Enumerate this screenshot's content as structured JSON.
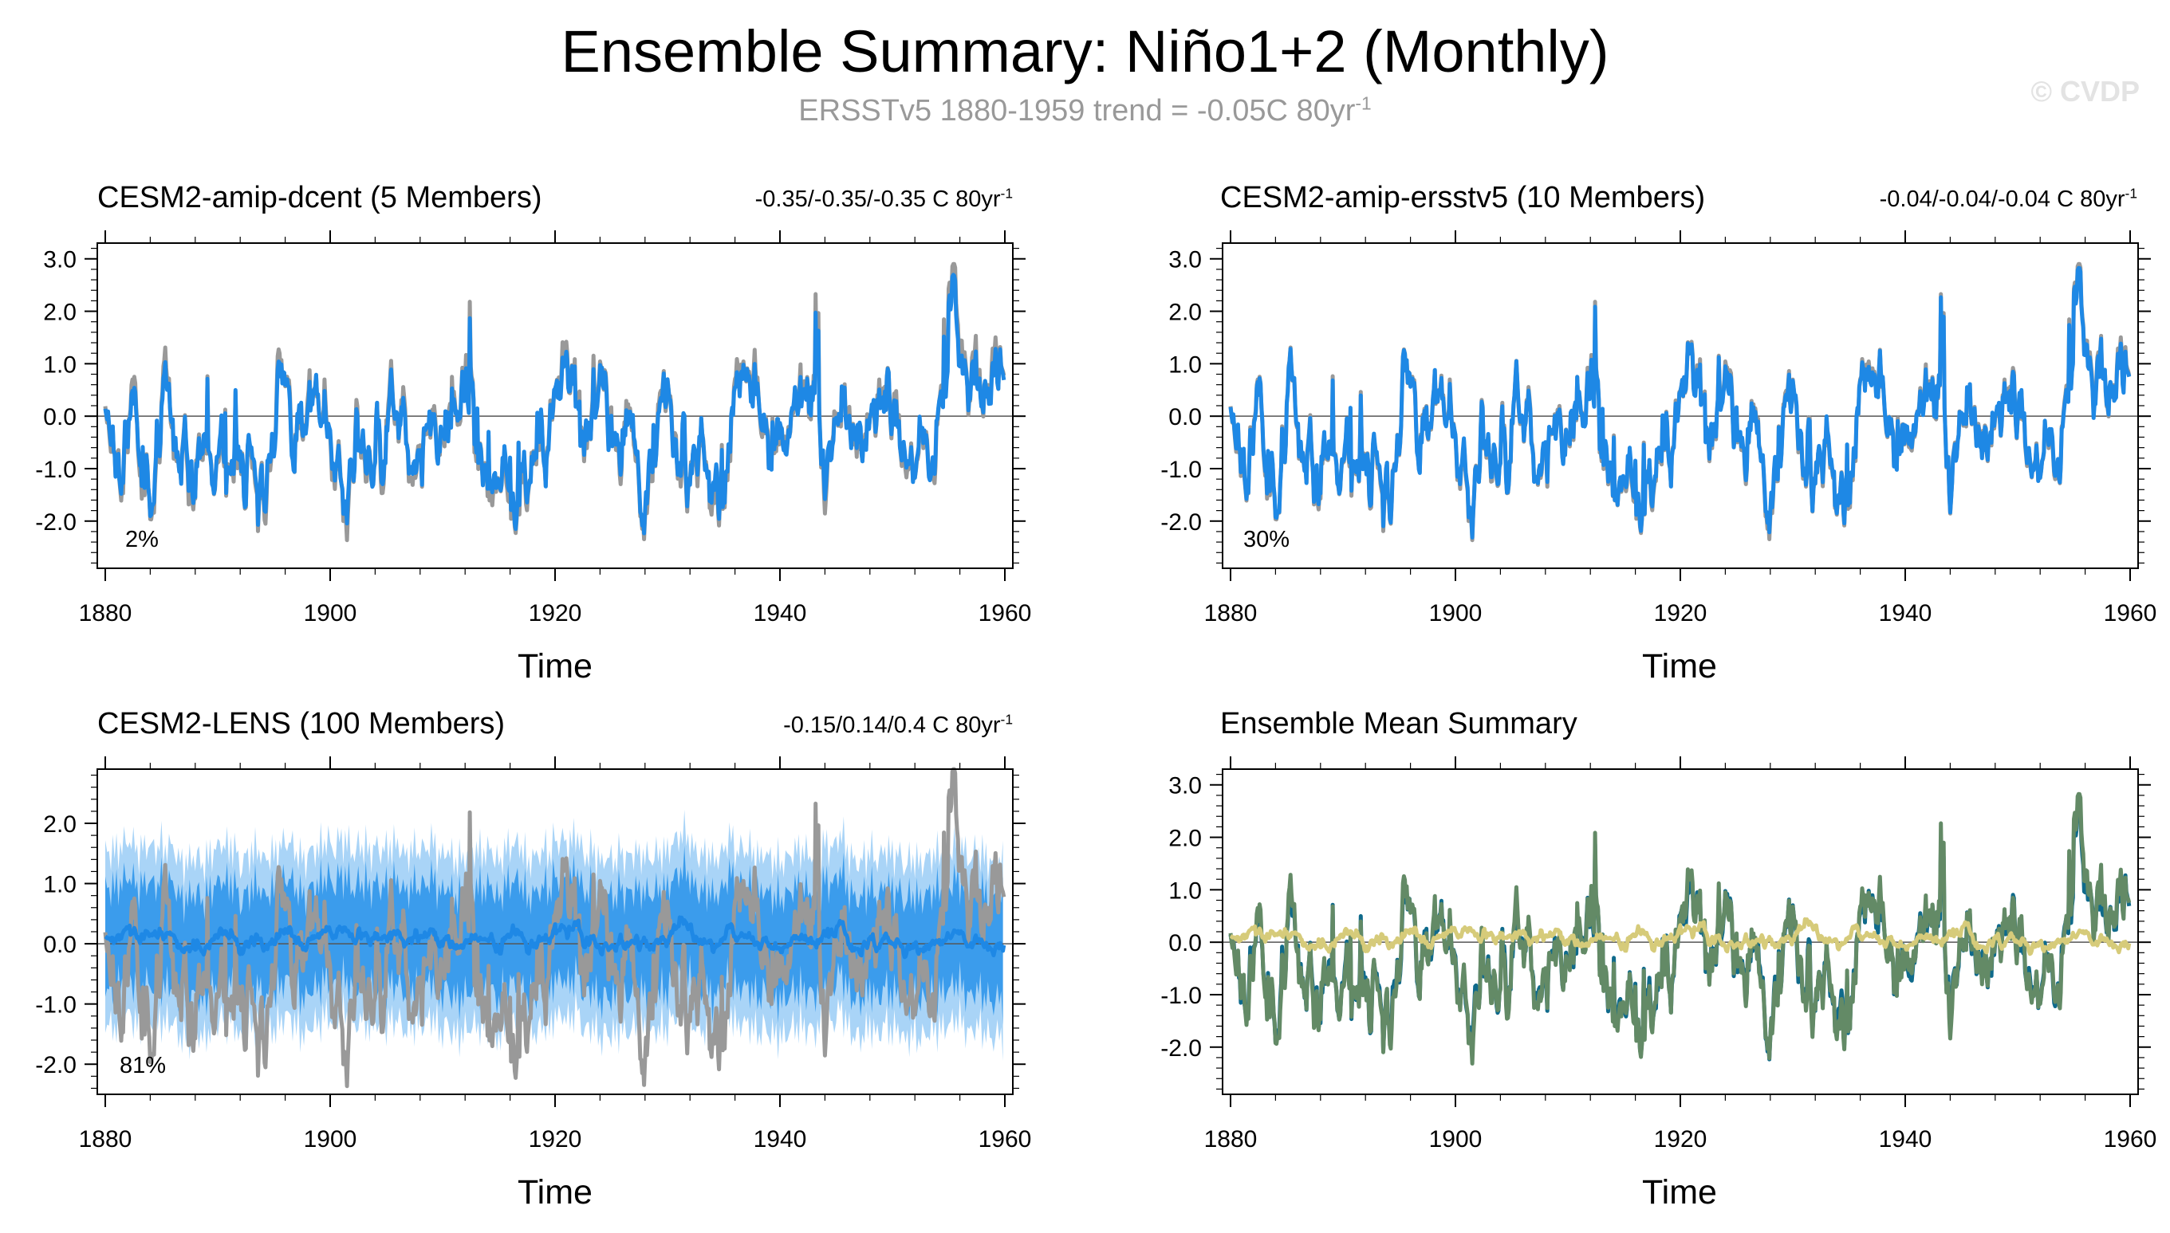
{
  "header": {
    "title": "Ensemble Summary: Niño1+2 (Monthly)",
    "subtitle": "ERSSTv5 1880-1959 trend = -0.05C 80yr",
    "subtitle_sup": "-1",
    "copyright": "© CVDP"
  },
  "colors": {
    "observed": "#999999",
    "member": "#1e88e5",
    "spread_outer": "#a9d4f7",
    "spread_inner": "#3b9cec",
    "dcent": "#0f6a8b",
    "ersstv5": "#638a66",
    "lens": "#d6cb7a"
  },
  "chart_data": [
    {
      "id": "dcent",
      "type": "line",
      "title": "CESM2-amip-dcent (5 Members)",
      "title_color": "#0f6a8b",
      "trend": "-0.35/-0.35/-0.35 C 80yr",
      "trend_sup": "-1",
      "percent": "2%",
      "xlabel": "Time",
      "xlim": [
        1880,
        1960
      ],
      "ylim": [
        -2.9,
        3.3
      ],
      "xticks": [
        "1880",
        "1900",
        "1920",
        "1940",
        "1960"
      ],
      "yticks": [
        "-2.0",
        "-1.0",
        "0.0",
        "1.0",
        "2.0",
        "3.0"
      ],
      "series": [
        {
          "role": "observed",
          "seed": 11,
          "mode": "obs"
        },
        {
          "role": "member",
          "seed": 11,
          "mode": "memberA"
        }
      ]
    },
    {
      "id": "ersstv5",
      "type": "line",
      "title": "CESM2-amip-ersstv5 (10 Members)",
      "title_color": "#638a66",
      "trend": "-0.04/-0.04/-0.04 C 80yr",
      "trend_sup": "-1",
      "percent": "30%",
      "xlabel": "Time",
      "xlim": [
        1880,
        1960
      ],
      "ylim": [
        -2.9,
        3.3
      ],
      "xticks": [
        "1880",
        "1900",
        "1920",
        "1940",
        "1960"
      ],
      "yticks": [
        "-2.0",
        "-1.0",
        "0.0",
        "1.0",
        "2.0",
        "3.0"
      ],
      "series": [
        {
          "role": "observed",
          "seed": 11,
          "mode": "obs"
        },
        {
          "role": "member",
          "seed": 11,
          "mode": "memberB"
        }
      ]
    },
    {
      "id": "lens",
      "type": "area",
      "title": "CESM2-LENS (100 Members)",
      "title_color": "#d6cb7a",
      "trend": "-0.15/0.14/0.4 C 80yr",
      "trend_sup": "-1",
      "percent": "81%",
      "xlabel": "Time",
      "xlim": [
        1880,
        1960
      ],
      "ylim": [
        -2.5,
        2.9
      ],
      "xticks": [
        "1880",
        "1900",
        "1920",
        "1940",
        "1960"
      ],
      "yticks": [
        "-2.0",
        "-1.0",
        "0.0",
        "1.0",
        "2.0"
      ],
      "bands": {
        "outer": 1.45,
        "inner": 0.85
      },
      "series": [
        {
          "role": "observed",
          "seed": 11,
          "mode": "obs"
        },
        {
          "role": "ensmean",
          "seed": 29,
          "mode": "mean"
        }
      ]
    },
    {
      "id": "summary",
      "type": "line",
      "title": "Ensemble Mean Summary",
      "title_color": "#000000",
      "trend": "",
      "percent": "",
      "xlabel": "Time",
      "xlim": [
        1880,
        1960
      ],
      "ylim": [
        -2.9,
        3.3
      ],
      "xticks": [
        "1880",
        "1900",
        "1920",
        "1940",
        "1960"
      ],
      "yticks": [
        "-2.0",
        "-1.0",
        "0.0",
        "1.0",
        "2.0",
        "3.0"
      ],
      "series": [
        {
          "role": "dcent",
          "seed": 11,
          "mode": "memberA"
        },
        {
          "role": "ersstv5",
          "seed": 11,
          "mode": "memberB"
        },
        {
          "role": "lens",
          "seed": 29,
          "mode": "mean"
        }
      ]
    }
  ]
}
